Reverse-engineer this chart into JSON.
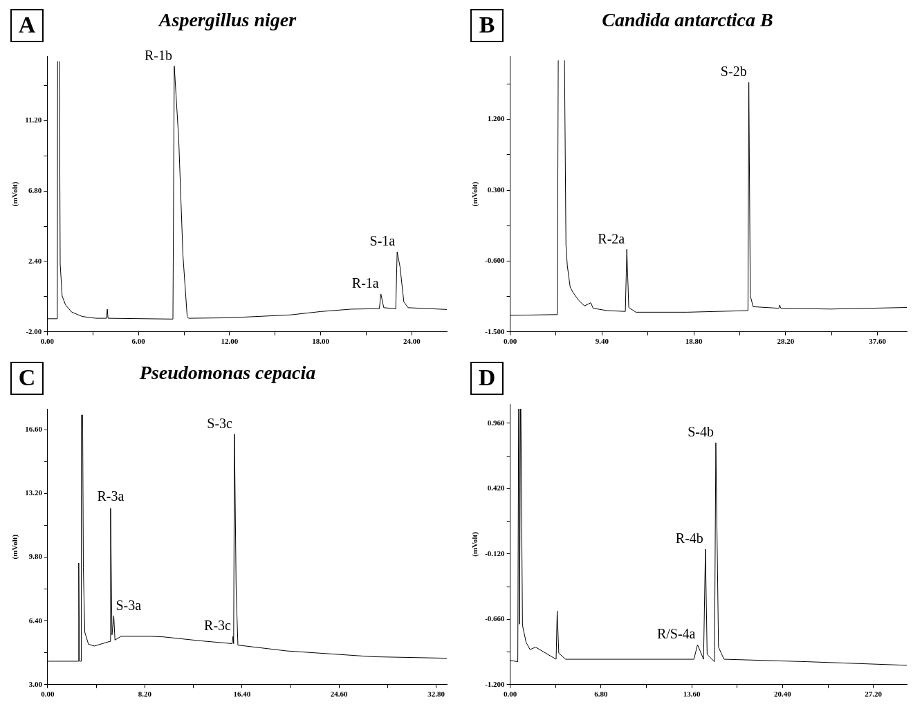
{
  "chart_data": [
    {
      "type": "line",
      "title": "Aspergillus niger",
      "ylabel": "(mVolt)",
      "color": "#000000",
      "marker": "none",
      "x": [
        0,
        0.66,
        0.68,
        0.74,
        0.8,
        0.85,
        0.98,
        1.2,
        1.6,
        2.3,
        3.2,
        3.9,
        3.95,
        4.0,
        8.2,
        8.27,
        8.36,
        8.65,
        8.93,
        9.21,
        9.3,
        12,
        16,
        18,
        20,
        21.86,
        21.96,
        22.15,
        22.94,
        23.03,
        23.22,
        23.47,
        23.75,
        26.3
      ],
      "values": [
        -1.18,
        -1.18,
        14.9,
        null,
        14.9,
        2.24,
        0.24,
        -0.31,
        -0.76,
        -1.04,
        -1.15,
        -1.15,
        -0.58,
        -1.15,
        -1.2,
        -1.2,
        14.6,
        10.07,
        2.79,
        -1.04,
        -1.15,
        -1.12,
        -0.94,
        -0.73,
        -0.58,
        -0.55,
        0.37,
        -0.49,
        -0.55,
        3.0,
        2.06,
        -0.12,
        -0.49,
        -0.6
      ],
      "xlim": [
        0,
        26.3
      ],
      "ylim": [
        -2,
        15.2
      ],
      "xticks": [
        {
          "value": 0,
          "label": "0.00"
        },
        {
          "value": 3,
          "label": null
        },
        {
          "value": 6,
          "label": "6.00"
        },
        {
          "value": 9,
          "label": null
        },
        {
          "value": 12,
          "label": "12.00"
        },
        {
          "value": 15,
          "label": null
        },
        {
          "value": 18,
          "label": "18.00"
        },
        {
          "value": 21,
          "label": null
        },
        {
          "value": 24,
          "label": "24.00"
        }
      ],
      "yticks": [
        {
          "value": -2,
          "label": "-2.00"
        },
        {
          "value": 0.2,
          "label": null
        },
        {
          "value": 2.4,
          "label": "2.40"
        },
        {
          "value": 4.6,
          "label": null
        },
        {
          "value": 6.8,
          "label": "6.80"
        },
        {
          "value": 9,
          "label": null
        },
        {
          "value": 11.2,
          "label": "11.20"
        },
        {
          "value": 13.4,
          "label": null
        }
      ],
      "annotations": [
        "A",
        {
          "text": "R-1b",
          "x": 8.36,
          "y": 14.6
        },
        {
          "text": "R-1a",
          "x": 21.96,
          "y": 0.37
        },
        {
          "text": "S-1a",
          "x": 23.03,
          "y": 3.0
        }
      ]
    },
    {
      "type": "line",
      "title": "Candida antarctica B",
      "ylabel": "(mVolt)",
      "color": "#000000",
      "marker": "none",
      "x": [
        0,
        4.83,
        4.92,
        5.24,
        5.56,
        5.71,
        5.85,
        6.14,
        6.44,
        7.02,
        7.61,
        8.25,
        8.49,
        9.95,
        11.79,
        11.94,
        12.14,
        12.87,
        18.14,
        24.34,
        24.43,
        24.58,
        24.87,
        27.5,
        27.59,
        27.7,
        32.8,
        40.6
      ],
      "values": [
        -1.29,
        -1.28,
        1.95,
        null,
        1.95,
        -0.4,
        -0.66,
        -0.93,
        -1.0,
        -1.1,
        -1.17,
        -1.13,
        -1.2,
        -1.23,
        -1.24,
        -0.45,
        -1.19,
        -1.25,
        -1.25,
        -1.23,
        1.67,
        -1.04,
        -1.18,
        -1.2,
        -1.16,
        -1.2,
        -1.21,
        -1.19
      ],
      "xlim": [
        0,
        40.6
      ],
      "ylim": [
        -1.5,
        2.0
      ],
      "xticks": [
        {
          "value": 0,
          "label": "0.00"
        },
        {
          "value": 4.7,
          "label": null
        },
        {
          "value": 9.4,
          "label": "9.40"
        },
        {
          "value": 14.1,
          "label": null
        },
        {
          "value": 18.8,
          "label": "18.80"
        },
        {
          "value": 23.5,
          "label": null
        },
        {
          "value": 28.2,
          "label": "28.20"
        },
        {
          "value": 32.9,
          "label": null
        },
        {
          "value": 37.6,
          "label": "37.60"
        }
      ],
      "yticks": [
        {
          "value": -1.5,
          "label": "-1.500"
        },
        {
          "value": -1.05,
          "label": null
        },
        {
          "value": -0.6,
          "label": "-0.600"
        },
        {
          "value": -0.15,
          "label": null
        },
        {
          "value": 0.3,
          "label": "0.300"
        },
        {
          "value": 0.75,
          "label": null
        },
        {
          "value": 1.2,
          "label": "1.200"
        },
        {
          "value": 1.65,
          "label": null
        }
      ],
      "annotations": [
        "B",
        {
          "text": "R-2a",
          "x": 11.94,
          "y": -0.45
        },
        {
          "text": "S-2b",
          "x": 24.43,
          "y": 1.67
        }
      ]
    },
    {
      "type": "line",
      "title": "Pseudomonas cepacia",
      "ylabel": "(mVolt)",
      "color": "#000000",
      "marker": "none",
      "x": [
        0,
        2.6,
        2.62,
        2.69,
        2.82,
        2.84,
        2.9,
        2.95,
        3.01,
        3.13,
        3.44,
        3.93,
        5.26,
        5.31,
        5.43,
        5.58,
        5.68,
        6.19,
        8.78,
        9.75,
        12.9,
        15.57,
        15.65,
        15.7,
        15.77,
        15.91,
        16.06,
        20.18,
        27.46,
        33.7
      ],
      "values": [
        4.25,
        4.25,
        9.49,
        4.25,
        4.25,
        17.4,
        null,
        17.4,
        9.25,
        5.81,
        5.16,
        5.06,
        5.31,
        12.41,
        5.66,
        6.67,
        5.38,
        5.58,
        5.58,
        5.55,
        5.34,
        5.19,
        5.58,
        5.19,
        16.37,
        8.16,
        5.11,
        4.8,
        4.49,
        4.41
      ],
      "xlim": [
        0,
        33.7
      ],
      "ylim": [
        3,
        17.7
      ],
      "xticks": [
        {
          "value": 0,
          "label": "0.00"
        },
        {
          "value": 4.1,
          "label": null
        },
        {
          "value": 8.2,
          "label": "8.20"
        },
        {
          "value": 12.3,
          "label": null
        },
        {
          "value": 16.4,
          "label": "16.40"
        },
        {
          "value": 20.5,
          "label": null
        },
        {
          "value": 24.6,
          "label": "24.60"
        },
        {
          "value": 28.7,
          "label": null
        },
        {
          "value": 32.8,
          "label": "32.80"
        }
      ],
      "yticks": [
        {
          "value": 3,
          "label": "3.00"
        },
        {
          "value": 4.7,
          "label": null
        },
        {
          "value": 6.4,
          "label": "6.40"
        },
        {
          "value": 8.1,
          "label": null
        },
        {
          "value": 9.8,
          "label": "9.80"
        },
        {
          "value": 11.5,
          "label": null
        },
        {
          "value": 13.2,
          "label": "13.20"
        },
        {
          "value": 14.9,
          "label": null
        },
        {
          "value": 16.6,
          "label": "16.60"
        }
      ],
      "annotations": [
        "C",
        {
          "text": "R-3a",
          "x": 5.31,
          "y": 12.41
        },
        {
          "text": "S-3a",
          "x": 5.58,
          "y": 6.67
        },
        {
          "text": "R-3c",
          "x": 15.65,
          "y": 5.58
        },
        {
          "text": "S-3c",
          "x": 15.77,
          "y": 16.37
        }
      ]
    },
    {
      "type": "line",
      "ylabel": "(mVolt)",
      "color": "#000000",
      "marker": "none",
      "x": [
        0,
        0.57,
        0.63,
        0.65,
        0.67,
        0.7,
        0.77,
        0.79,
        0.8,
        0.92,
        1.19,
        1.49,
        1.9,
        3.44,
        3.52,
        3.64,
        4.15,
        13.76,
        14.03,
        14.48,
        14.62,
        14.75,
        15.3,
        15.4,
        15.6,
        16.01,
        22.15,
        29.7
      ],
      "values": [
        -1.0,
        -1.01,
        1.08,
        null,
        1.08,
        -0.7,
        1.08,
        null,
        1.08,
        -0.71,
        -0.85,
        -0.91,
        -0.89,
        -0.99,
        -0.59,
        -0.94,
        -0.99,
        -0.99,
        -0.87,
        -0.99,
        -0.08,
        -0.95,
        -1.01,
        0.8,
        -0.89,
        -0.99,
        -1.01,
        -1.04
      ],
      "xlim": [
        0,
        29.7
      ],
      "ylim": [
        -1.2,
        1.12
      ],
      "xticks": [
        {
          "value": 0,
          "label": "0.00"
        },
        {
          "value": 3.4,
          "label": null
        },
        {
          "value": 6.8,
          "label": "6.80"
        },
        {
          "value": 10.2,
          "label": null
        },
        {
          "value": 13.6,
          "label": "13.60"
        },
        {
          "value": 17,
          "label": null
        },
        {
          "value": 20.4,
          "label": "20.40"
        },
        {
          "value": 23.8,
          "label": null
        },
        {
          "value": 27.2,
          "label": "27.20"
        }
      ],
      "yticks": [
        {
          "value": -1.2,
          "label": "-1.200"
        },
        {
          "value": -0.93,
          "label": null
        },
        {
          "value": -0.66,
          "label": "-0.660"
        },
        {
          "value": -0.39,
          "label": null
        },
        {
          "value": -0.12,
          "label": "-0.120"
        },
        {
          "value": 0.15,
          "label": null
        },
        {
          "value": 0.42,
          "label": "0.420"
        },
        {
          "value": 0.69,
          "label": null
        },
        {
          "value": 0.96,
          "label": "0.960"
        }
      ],
      "annotations": [
        "D",
        {
          "text": "R/S-4a",
          "x": 14.03,
          "y": -0.87
        },
        {
          "text": "R-4b",
          "x": 14.62,
          "y": -0.08
        },
        {
          "text": "S-4b",
          "x": 15.4,
          "y": 0.8
        }
      ]
    }
  ]
}
